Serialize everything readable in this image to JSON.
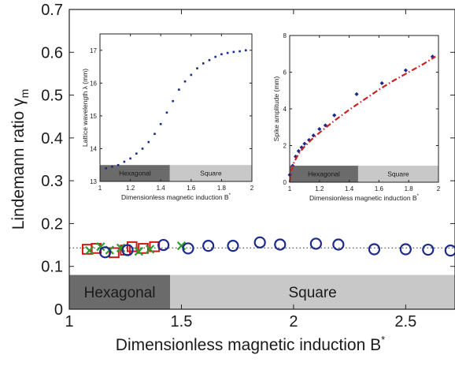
{
  "chart_data": [
    {
      "id": "main",
      "type": "scatter",
      "xlabel": "Dimensionless magnetic induction B",
      "xlabel_sup": "*",
      "ylabel": "Lindemann ratio γ",
      "ylabel_sub": "m",
      "xlim": [
        1,
        2.72
      ],
      "ylim": [
        0,
        0.7
      ],
      "xticks": [
        "1",
        "1.5",
        "2",
        "2.5"
      ],
      "xtick_values": [
        1,
        1.5,
        2,
        2.5
      ],
      "yticks": [
        "0",
        "0.1",
        "0.2",
        "0.3",
        "0.4",
        "0.5",
        "0.6",
        "0.7"
      ],
      "ytick_values": [
        0,
        0.1,
        0.2,
        0.3,
        0.4,
        0.5,
        0.6,
        0.7
      ],
      "grid": false,
      "reference_line": {
        "y": 0.143,
        "style": "dotted",
        "color": "#555555"
      },
      "phase_bands": [
        {
          "label": "Hexagonal",
          "x0": 1.0,
          "x1": 1.45,
          "y0": 0.0,
          "y1": 0.08,
          "color": "#6b6b6b"
        },
        {
          "label": "Square",
          "x0": 1.45,
          "x1": 2.72,
          "y0": 0.0,
          "y1": 0.08,
          "color": "#c8c8c8"
        }
      ],
      "series": [
        {
          "marker": "square",
          "color": "#cc1a1a",
          "x": [
            1.08,
            1.12,
            1.2,
            1.25,
            1.28,
            1.33,
            1.38
          ],
          "y": [
            0.14,
            0.142,
            0.132,
            0.138,
            0.146,
            0.142,
            0.146
          ]
        },
        {
          "marker": "x",
          "color": "#2e9b2e",
          "x": [
            1.09,
            1.14,
            1.18,
            1.23,
            1.31,
            1.36,
            1.5
          ],
          "y": [
            0.137,
            0.146,
            0.138,
            0.143,
            0.135,
            0.14,
            0.148
          ]
        },
        {
          "marker": "circle",
          "color": "#1c2a8c",
          "x": [
            1.16,
            1.26,
            1.42,
            1.53,
            1.62,
            1.73,
            1.85,
            1.94,
            2.1,
            2.2,
            2.36,
            2.5,
            2.6,
            2.7
          ],
          "y": [
            0.133,
            0.138,
            0.15,
            0.142,
            0.148,
            0.148,
            0.156,
            0.151,
            0.153,
            0.151,
            0.14,
            0.14,
            0.139,
            0.137
          ]
        }
      ]
    },
    {
      "id": "inset_left",
      "type": "scatter",
      "xlabel": "Dimensionless magnetic induction B",
      "xlabel_sup": "*",
      "ylabel": "Lattice wavelength λ (mm)",
      "xlim": [
        1,
        2
      ],
      "ylim": [
        13,
        17.5
      ],
      "xticks": [
        "1",
        "1.2",
        "1.4",
        "1.6",
        "1.8",
        "2"
      ],
      "xtick_values": [
        1,
        1.2,
        1.4,
        1.6,
        1.8,
        2
      ],
      "yticks": [
        "13",
        "14",
        "15",
        "16",
        "17"
      ],
      "ytick_values": [
        13,
        14,
        15,
        16,
        17
      ],
      "phase_bands": [
        {
          "label": "Hexagonal",
          "x0": 1.0,
          "x1": 1.46,
          "y0": 13.0,
          "y1": 13.5,
          "color": "#6b6b6b"
        },
        {
          "label": "Square",
          "x0": 1.46,
          "x1": 2.0,
          "y0": 13.0,
          "y1": 13.5,
          "color": "#c8c8c8"
        }
      ],
      "series": [
        {
          "marker": "dot",
          "color": "#1c2a8c",
          "x": [
            1.04,
            1.08,
            1.12,
            1.16,
            1.2,
            1.24,
            1.28,
            1.32,
            1.36,
            1.4,
            1.44,
            1.48,
            1.52,
            1.56,
            1.6,
            1.64,
            1.68,
            1.72,
            1.76,
            1.8,
            1.84,
            1.88,
            1.92,
            1.96
          ],
          "y": [
            13.4,
            13.45,
            13.5,
            13.6,
            13.7,
            13.85,
            14.0,
            14.2,
            14.45,
            14.75,
            15.1,
            15.45,
            15.8,
            16.05,
            16.25,
            16.45,
            16.6,
            16.7,
            16.8,
            16.88,
            16.92,
            16.95,
            16.97,
            17.0
          ]
        }
      ]
    },
    {
      "id": "inset_right",
      "type": "line",
      "xlabel": "Dimensionless magnetic induction B",
      "xlabel_sup": "*",
      "ylabel": "Spike amplitude (mm)",
      "xlim": [
        1,
        2
      ],
      "ylim": [
        0,
        8
      ],
      "xticks": [
        "1",
        "1.2",
        "1.4",
        "1.6",
        "1.8",
        "2"
      ],
      "xtick_values": [
        1,
        1.2,
        1.4,
        1.6,
        1.8,
        2
      ],
      "yticks": [
        "0",
        "2",
        "4",
        "6",
        "8"
      ],
      "ytick_values": [
        0,
        2,
        4,
        6,
        8
      ],
      "phase_bands": [
        {
          "label": "Hexagonal",
          "x0": 1.0,
          "x1": 1.46,
          "y0": 0.0,
          "y1": 0.9,
          "color": "#6b6b6b"
        },
        {
          "label": "Square",
          "x0": 1.46,
          "x1": 2.0,
          "y0": 0.0,
          "y1": 0.9,
          "color": "#c8c8c8"
        }
      ],
      "series": [
        {
          "marker": "diamond",
          "color": "#1c2a8c",
          "x": [
            1.0,
            1.02,
            1.04,
            1.06,
            1.08,
            1.1,
            1.13,
            1.16,
            1.2,
            1.24,
            1.3,
            1.45,
            1.62,
            1.78,
            1.96
          ],
          "y": [
            0.4,
            0.9,
            1.4,
            1.7,
            1.9,
            2.1,
            2.3,
            2.55,
            2.9,
            3.1,
            3.65,
            4.8,
            5.4,
            6.1,
            6.85
          ]
        },
        {
          "style": "dash-dot",
          "color": "#cc2222",
          "x": [
            1.0,
            1.01,
            1.03,
            1.06,
            1.1,
            1.15,
            1.2,
            1.3,
            1.4,
            1.5,
            1.6,
            1.7,
            1.8,
            1.9,
            1.98
          ],
          "y": [
            0.0,
            0.6,
            1.1,
            1.55,
            1.95,
            2.35,
            2.7,
            3.35,
            3.95,
            4.5,
            5.05,
            5.55,
            6.0,
            6.45,
            6.85
          ]
        }
      ]
    }
  ]
}
